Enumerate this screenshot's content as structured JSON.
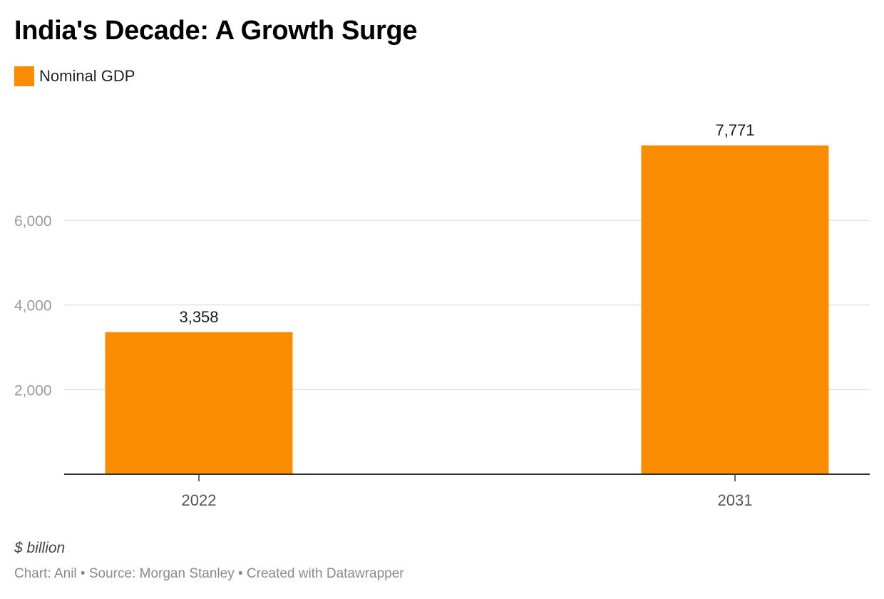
{
  "chart_data": {
    "type": "bar",
    "title": "India's Decade: A Growth Surge",
    "categories": [
      "2022",
      "2031"
    ],
    "series": [
      {
        "name": "Nominal GDP",
        "values": [
          3358,
          7771
        ],
        "color": "#f98c00"
      }
    ],
    "value_labels": [
      "3,358",
      "7,771"
    ],
    "y_ticks": [
      2000,
      4000,
      6000
    ],
    "y_tick_labels": [
      "2,000",
      "4,000",
      "6,000"
    ],
    "ylim": [
      0,
      8000
    ],
    "grid": true,
    "legend_position": "top-left",
    "unit_note": "$ billion",
    "credit": "Chart: Anil • Source: Morgan Stanley • Created with Datawrapper"
  }
}
